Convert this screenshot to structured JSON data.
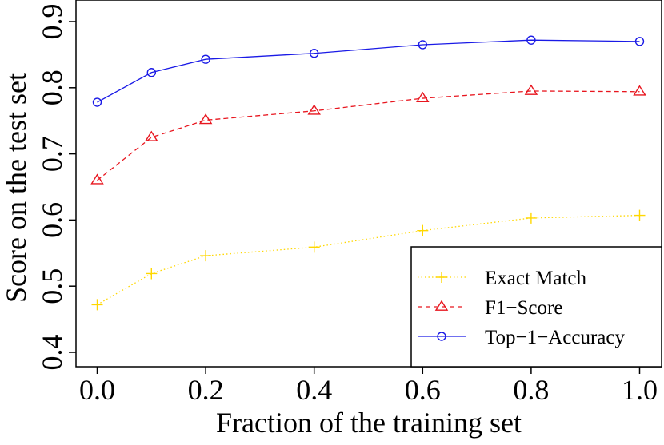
{
  "chart_data": {
    "type": "line",
    "title": "",
    "xlabel": "Fraction of the training set",
    "ylabel": "Score on the test set",
    "xlim": [
      0.0,
      1.0
    ],
    "ylim": [
      0.4,
      0.9
    ],
    "x": [
      0.0,
      0.1,
      0.2,
      0.4,
      0.6,
      0.8,
      1.0
    ],
    "x_ticks": [
      "0.0",
      "0.2",
      "0.4",
      "0.6",
      "0.8",
      "1.0"
    ],
    "x_tick_values": [
      0.0,
      0.2,
      0.4,
      0.6,
      0.8,
      1.0
    ],
    "y_ticks": [
      "0.4",
      "0.5",
      "0.6",
      "0.7",
      "0.8",
      "0.9"
    ],
    "y_tick_values": [
      0.4,
      0.5,
      0.6,
      0.7,
      0.8,
      0.9
    ],
    "legend_position": "bottom-right",
    "grid": false,
    "series": [
      {
        "name": "Exact Match",
        "values": [
          0.472,
          0.519,
          0.546,
          0.559,
          0.584,
          0.603,
          0.607
        ],
        "color": "#FFD700",
        "marker": "plus",
        "line": "dotted"
      },
      {
        "name": "F1−Score",
        "values": [
          0.66,
          0.725,
          0.751,
          0.765,
          0.784,
          0.795,
          0.794
        ],
        "color": "#E8161F",
        "marker": "triangle",
        "line": "dashed"
      },
      {
        "name": "Top−1−Accuracy",
        "values": [
          0.778,
          0.823,
          0.843,
          0.852,
          0.865,
          0.872,
          0.87
        ],
        "color": "#1A1AE6",
        "marker": "circle",
        "line": "solid"
      }
    ]
  }
}
